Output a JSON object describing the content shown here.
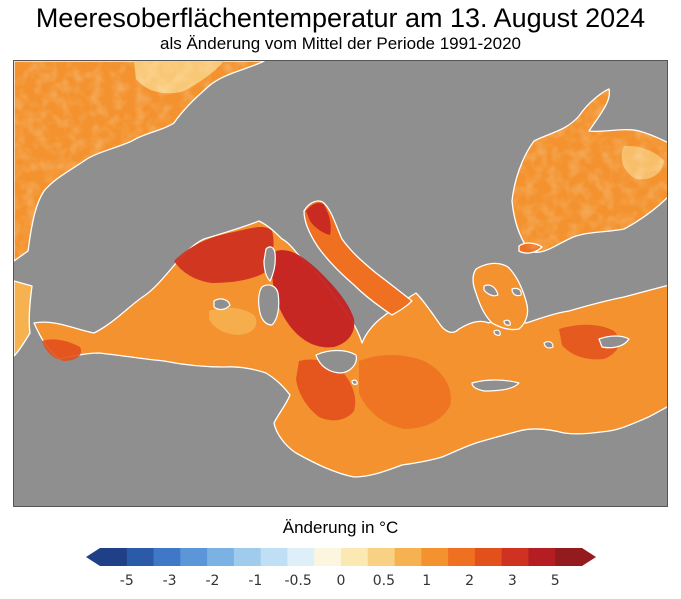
{
  "title": "Meeresoberflächentemperatur am 13. August 2024",
  "subtitle": "als Änderung vom Mittel der Periode 1991-2020",
  "legend": {
    "title": "Änderung in °C",
    "ticks": [
      "-5",
      "-3",
      "-2",
      "-1",
      "-0.5",
      "0",
      "0.5",
      "1",
      "2",
      "3",
      "5"
    ],
    "colors": [
      "#1f3f86",
      "#2a5aa8",
      "#3f78c6",
      "#5b97d8",
      "#7ab3e3",
      "#9fcbed",
      "#bfdff4",
      "#deeffa",
      "#fdf6df",
      "#fce8b2",
      "#f9d184",
      "#f6b251",
      "#f3922e",
      "#ee7020",
      "#e2501c",
      "#cf3220",
      "#b41d22",
      "#931a1d"
    ]
  },
  "map": {
    "land_color": "#8f8f8f",
    "coast_color": "#ffffff",
    "sea_colors": {
      "moderate": "#f3922e",
      "warm": "#ee7020",
      "hot": "#e2501c",
      "very_hot": "#c42222",
      "mild": "#f6b251",
      "cool": "#fce8b2"
    }
  }
}
